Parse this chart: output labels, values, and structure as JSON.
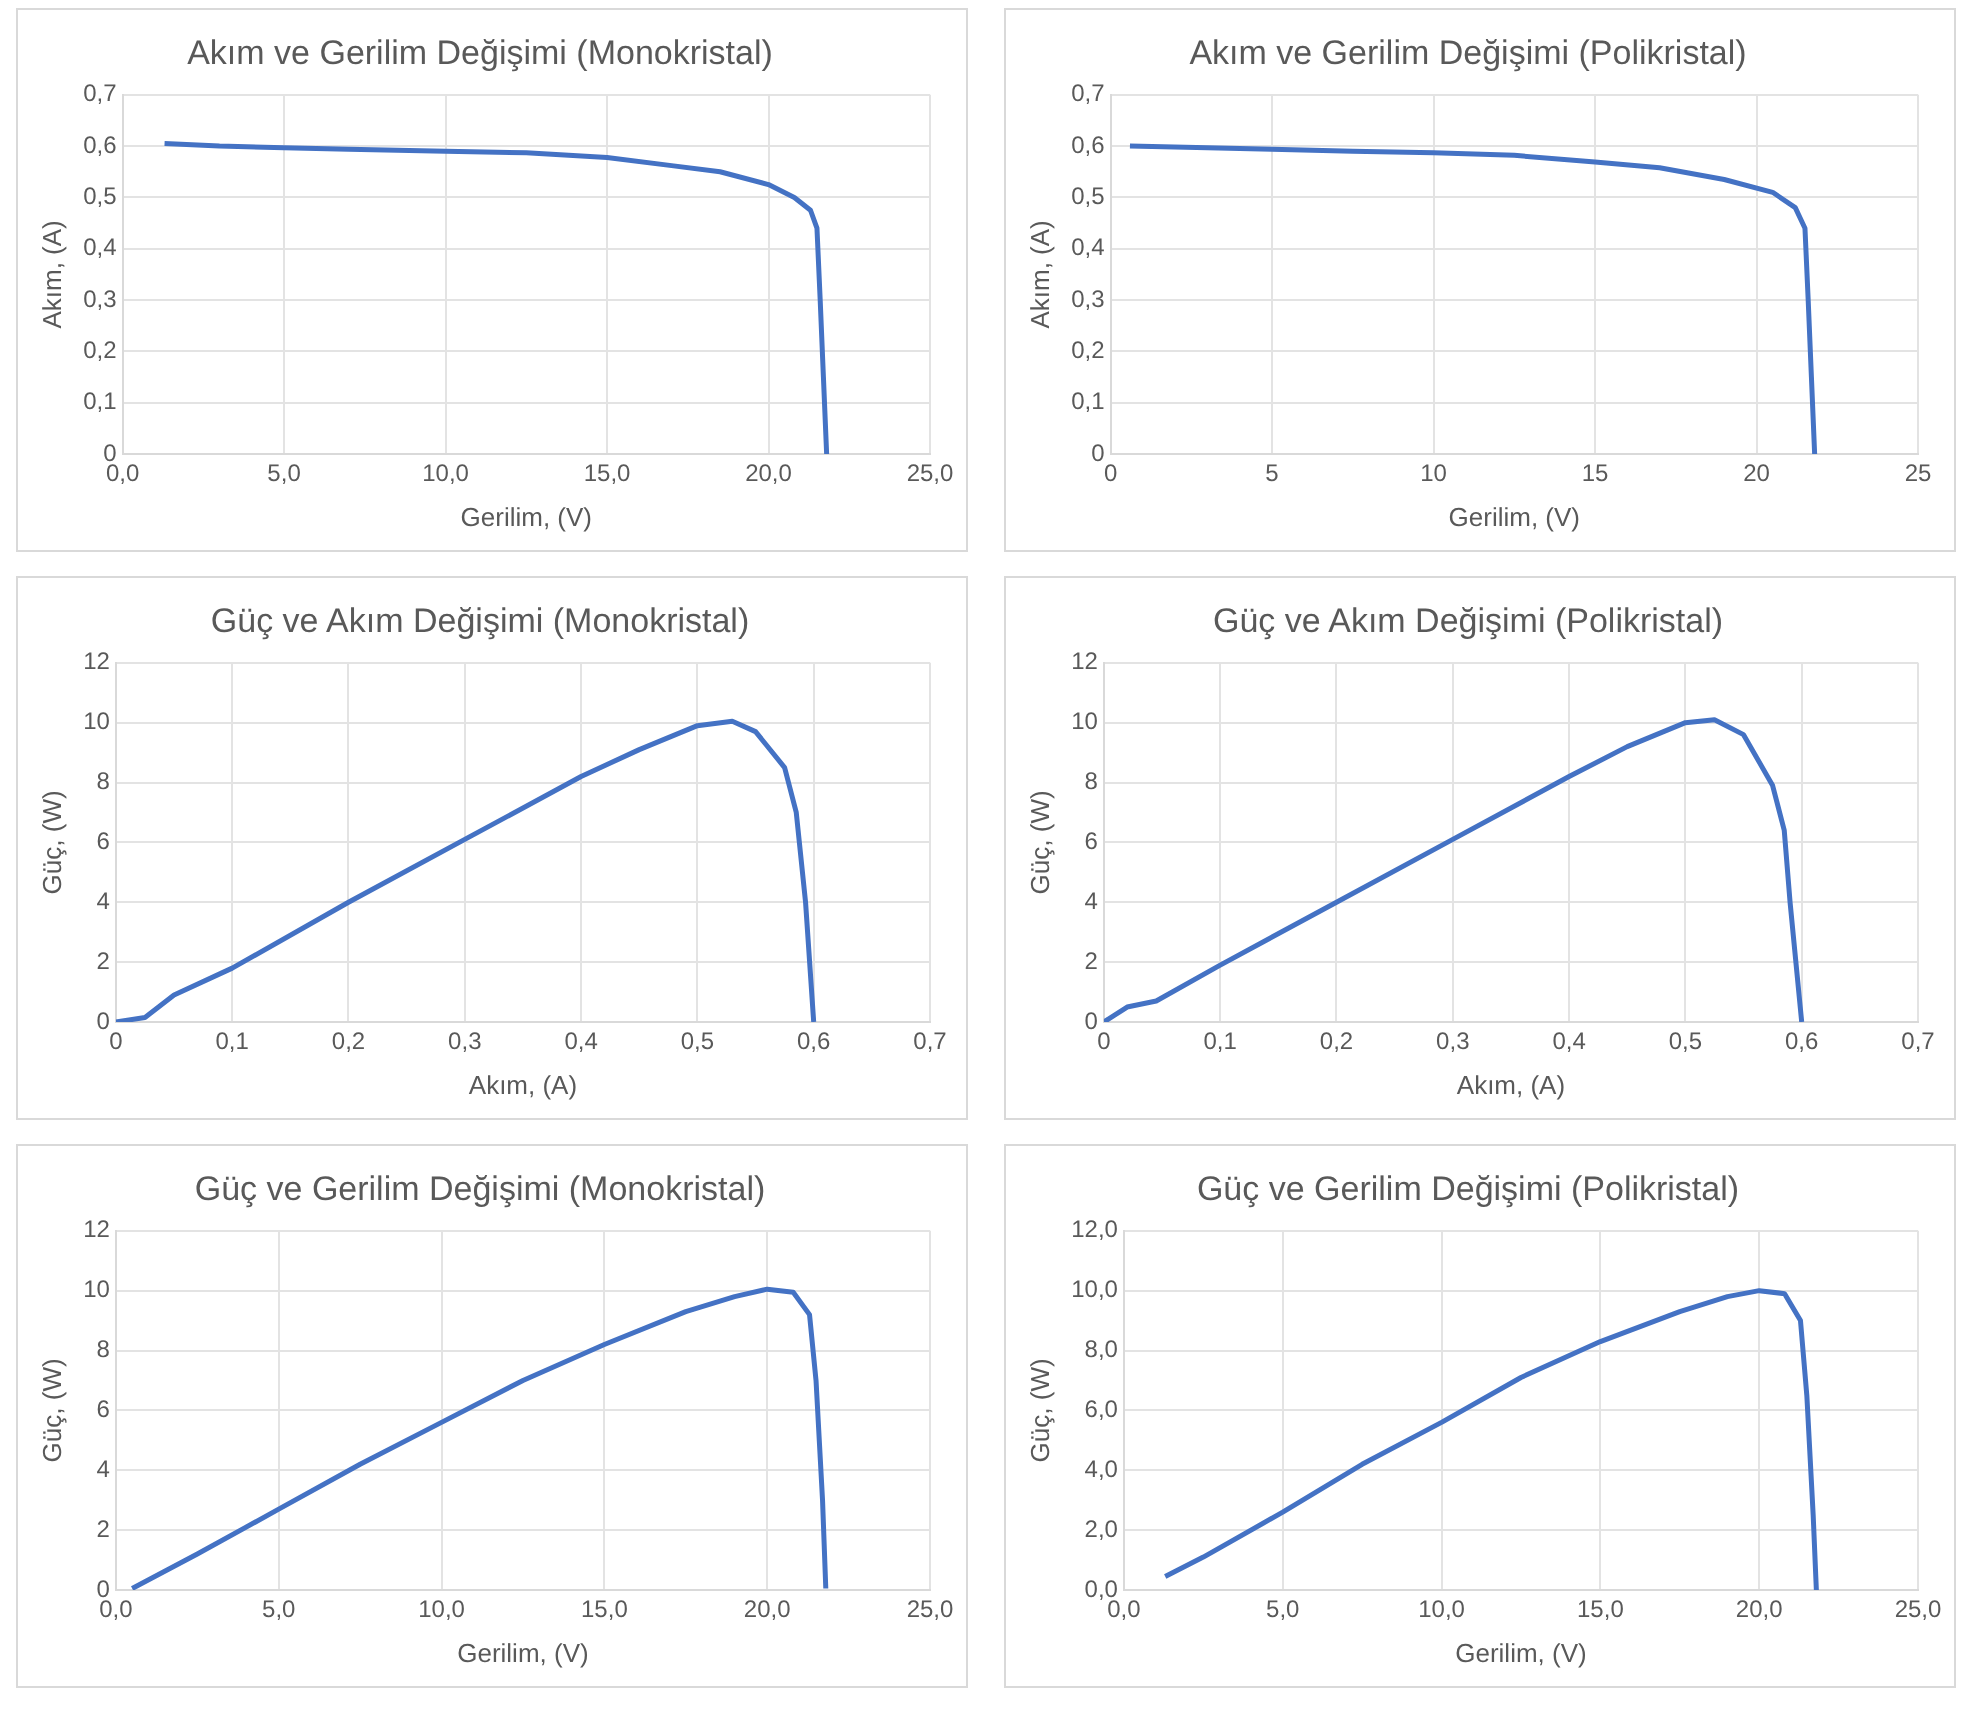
{
  "chart_data": [
    {
      "type": "line",
      "title": "Akım ve Gerilim Değişimi (Monokristal)",
      "xlabel": "Gerilim, (V)",
      "ylabel": "Akım, (A)",
      "grid": true,
      "x": [
        1.3,
        3,
        5,
        7,
        10,
        12.5,
        15,
        17,
        18.5,
        20,
        20.8,
        21.3,
        21.5,
        21.6,
        21.7,
        21.8
      ],
      "series": [
        {
          "color": "#4472c4",
          "values": [
            0.605,
            0.6,
            0.597,
            0.594,
            0.59,
            0.587,
            0.578,
            0.562,
            0.55,
            0.525,
            0.5,
            0.475,
            0.44,
            0.3,
            0.15,
            0
          ]
        }
      ],
      "xlim": [
        0,
        25
      ],
      "xticks": [
        {
          "value": 0,
          "label": "0,0"
        },
        {
          "value": 5,
          "label": "5,0"
        },
        {
          "value": 10,
          "label": "10,0"
        },
        {
          "value": 15,
          "label": "15,0"
        },
        {
          "value": 20,
          "label": "20,0"
        },
        {
          "value": 25,
          "label": "25,0"
        }
      ],
      "ylim": [
        0,
        0.7
      ],
      "yticks": [
        0,
        {
          "value": 0.1,
          "label": "0,1"
        },
        {
          "value": 0.2,
          "label": "0,2"
        },
        {
          "value": 0.3,
          "label": "0,3"
        },
        {
          "value": 0.4,
          "label": "0,4"
        },
        {
          "value": 0.5,
          "label": "0,5"
        },
        {
          "value": 0.6,
          "label": "0,6"
        },
        {
          "value": 0.7,
          "label": "0,7"
        }
      ]
    },
    {
      "type": "line",
      "title": "Akım ve Gerilim Değişimi (Polikristal)",
      "xlabel": "Gerilim, (V)",
      "ylabel": "Akım, (A)",
      "grid": true,
      "x": [
        0.6,
        3,
        5,
        7.5,
        10,
        12.5,
        15,
        17,
        19,
        20.5,
        21.2,
        21.5,
        21.6,
        21.7,
        21.8
      ],
      "series": [
        {
          "color": "#4472c4",
          "values": [
            0.6,
            0.597,
            0.594,
            0.59,
            0.587,
            0.582,
            0.569,
            0.558,
            0.535,
            0.51,
            0.48,
            0.44,
            0.3,
            0.15,
            0
          ]
        }
      ],
      "xlim": [
        0,
        25
      ],
      "xticks": [
        0,
        5,
        10,
        15,
        20,
        25
      ],
      "ylim": [
        0,
        0.7
      ],
      "yticks": [
        0,
        {
          "value": 0.1,
          "label": "0,1"
        },
        {
          "value": 0.2,
          "label": "0,2"
        },
        {
          "value": 0.3,
          "label": "0,3"
        },
        {
          "value": 0.4,
          "label": "0,4"
        },
        {
          "value": 0.5,
          "label": "0,5"
        },
        {
          "value": 0.6,
          "label": "0,6"
        },
        {
          "value": 0.7,
          "label": "0,7"
        }
      ]
    },
    {
      "type": "line",
      "title": "Güç ve Akım Değişimi (Monokristal)",
      "xlabel": "Akım, (A)",
      "ylabel": "Güç, (W)",
      "grid": true,
      "x": [
        0,
        0.025,
        0.05,
        0.1,
        0.2,
        0.3,
        0.4,
        0.45,
        0.5,
        0.53,
        0.55,
        0.575,
        0.585,
        0.593,
        0.6
      ],
      "series": [
        {
          "color": "#4472c4",
          "values": [
            0,
            0.15,
            0.9,
            1.8,
            4.0,
            6.1,
            8.2,
            9.1,
            9.9,
            10.05,
            9.7,
            8.5,
            7,
            4,
            0
          ]
        }
      ],
      "xlim": [
        0,
        0.7
      ],
      "xticks": [
        0,
        {
          "value": 0.1,
          "label": "0,1"
        },
        {
          "value": 0.2,
          "label": "0,2"
        },
        {
          "value": 0.3,
          "label": "0,3"
        },
        {
          "value": 0.4,
          "label": "0,4"
        },
        {
          "value": 0.5,
          "label": "0,5"
        },
        {
          "value": 0.6,
          "label": "0,6"
        },
        {
          "value": 0.7,
          "label": "0,7"
        }
      ],
      "ylim": [
        0,
        12
      ],
      "yticks": [
        0,
        2,
        4,
        6,
        8,
        10,
        12
      ]
    },
    {
      "type": "line",
      "title": "Güç ve Akım Değişimi (Polikristal)",
      "xlabel": "Akım, (A)",
      "ylabel": "Güç, (W)",
      "grid": true,
      "x": [
        0,
        0.02,
        0.045,
        0.1,
        0.2,
        0.3,
        0.4,
        0.45,
        0.5,
        0.525,
        0.55,
        0.575,
        0.585,
        0.59,
        0.6
      ],
      "series": [
        {
          "color": "#4472c4",
          "values": [
            0,
            0.5,
            0.7,
            1.9,
            4.0,
            6.1,
            8.2,
            9.2,
            10,
            10.1,
            9.6,
            7.9,
            6.4,
            4,
            0
          ]
        }
      ],
      "xlim": [
        0,
        0.7
      ],
      "xticks": [
        0,
        {
          "value": 0.1,
          "label": "0,1"
        },
        {
          "value": 0.2,
          "label": "0,2"
        },
        {
          "value": 0.3,
          "label": "0,3"
        },
        {
          "value": 0.4,
          "label": "0,4"
        },
        {
          "value": 0.5,
          "label": "0,5"
        },
        {
          "value": 0.6,
          "label": "0,6"
        },
        {
          "value": 0.7,
          "label": "0,7"
        }
      ],
      "ylim": [
        0,
        12
      ],
      "yticks": [
        0,
        2,
        4,
        6,
        8,
        10,
        12
      ]
    },
    {
      "type": "line",
      "title": "Güç ve Gerilim Değişimi (Monokristal)",
      "xlabel": "Gerilim, (V)",
      "ylabel": "Güç, (W)",
      "grid": true,
      "x": [
        0.5,
        2.5,
        5,
        7.5,
        10,
        12.5,
        15,
        17.5,
        19,
        20,
        20.8,
        21.3,
        21.5,
        21.7,
        21.8
      ],
      "series": [
        {
          "color": "#4472c4",
          "values": [
            0.05,
            1.2,
            2.7,
            4.2,
            5.6,
            7.0,
            8.2,
            9.3,
            9.8,
            10.05,
            9.95,
            9.2,
            7,
            3,
            0.05
          ]
        }
      ],
      "xlim": [
        0,
        25
      ],
      "xticks": [
        {
          "value": 0,
          "label": "0,0"
        },
        {
          "value": 5,
          "label": "5,0"
        },
        {
          "value": 10,
          "label": "10,0"
        },
        {
          "value": 15,
          "label": "15,0"
        },
        {
          "value": 20,
          "label": "20,0"
        },
        {
          "value": 25,
          "label": "25,0"
        }
      ],
      "ylim": [
        0,
        12
      ],
      "yticks": [
        0,
        2,
        4,
        6,
        8,
        10,
        12
      ]
    },
    {
      "type": "line",
      "title": "Güç ve Gerilim Değişimi (Polikristal)",
      "xlabel": "Gerilim, (V)",
      "ylabel": "Güç, (W)",
      "grid": true,
      "x": [
        1.3,
        2.5,
        5,
        7.5,
        10,
        12.5,
        15,
        17.5,
        19,
        20,
        20.8,
        21.3,
        21.5,
        21.7,
        21.8
      ],
      "series": [
        {
          "color": "#4472c4",
          "values": [
            0.45,
            1.1,
            2.6,
            4.2,
            5.6,
            7.1,
            8.3,
            9.3,
            9.8,
            10,
            9.9,
            9.0,
            6.5,
            2.5,
            0
          ]
        }
      ],
      "xlim": [
        0,
        25
      ],
      "xticks": [
        {
          "value": 0,
          "label": "0,0"
        },
        {
          "value": 5,
          "label": "5,0"
        },
        {
          "value": 10,
          "label": "10,0"
        },
        {
          "value": 15,
          "label": "15,0"
        },
        {
          "value": 20,
          "label": "20,0"
        },
        {
          "value": 25,
          "label": "25,0"
        }
      ],
      "ylim": [
        0,
        12
      ],
      "yticks": [
        {
          "value": 0,
          "label": "0,0"
        },
        {
          "value": 2,
          "label": "2,0"
        },
        {
          "value": 4,
          "label": "4,0"
        },
        {
          "value": 6,
          "label": "6,0"
        },
        {
          "value": 8,
          "label": "8,0"
        },
        {
          "value": 10,
          "label": "10,0"
        },
        {
          "value": 12,
          "label": "12,0"
        }
      ]
    }
  ]
}
